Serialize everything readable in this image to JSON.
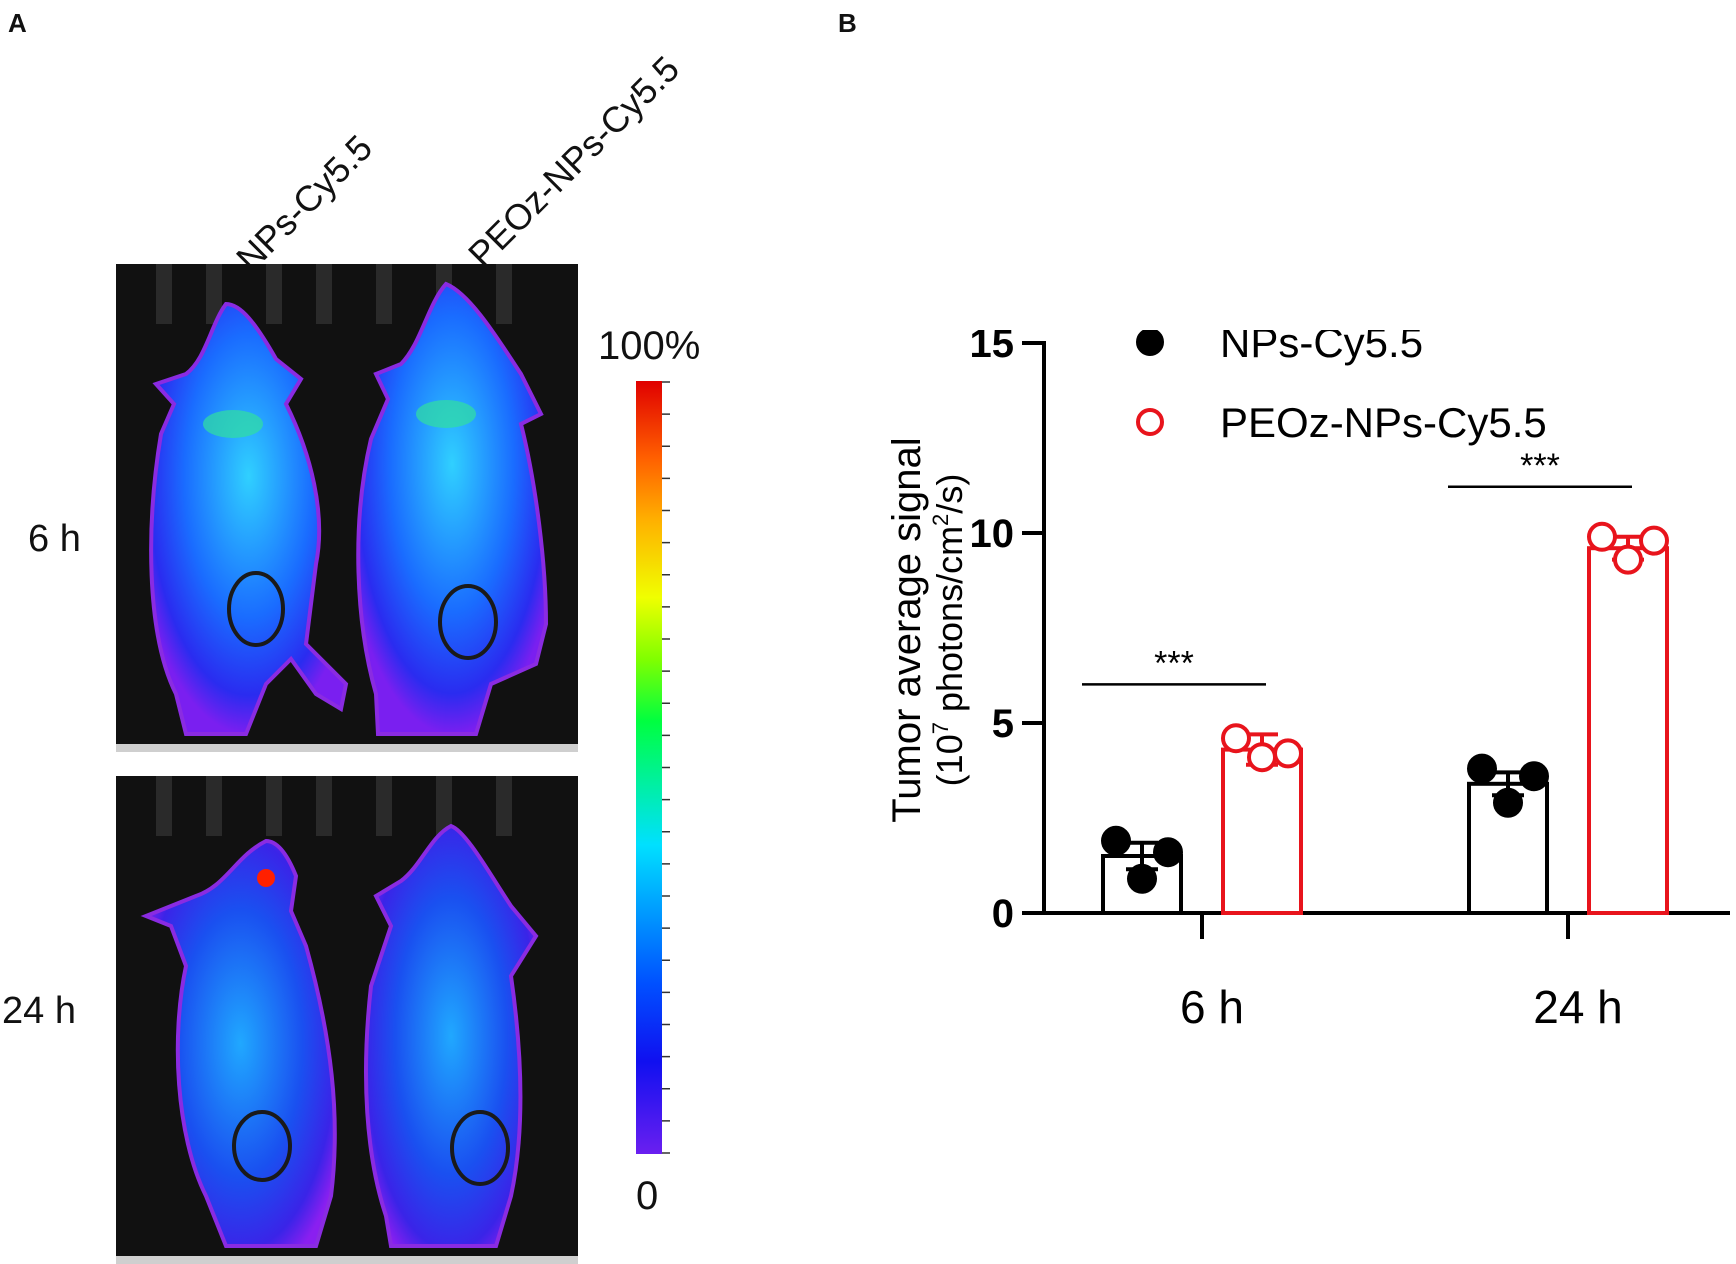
{
  "panel_a": {
    "label": "A",
    "column_labels": [
      "NPs-Cy5.5",
      "PEOz-NPs-Cy5.5"
    ],
    "row_labels": [
      "6 h",
      "24 h"
    ],
    "colorbar": {
      "max_label": "100%",
      "min_label": "0"
    }
  },
  "panel_b": {
    "label": "B"
  },
  "chart_data": {
    "type": "bar",
    "categories": [
      "6 h",
      "24 h"
    ],
    "ylabel_line1": "Tumor average signal",
    "ylabel_line2_prefix": "(10",
    "ylabel_line2_exp": "7",
    "ylabel_line2_mid": " photons/cm",
    "ylabel_line2_exp2": "2",
    "ylabel_line2_suffix": "/s)",
    "ylim": [
      0,
      15
    ],
    "yticks": [
      0,
      5,
      10,
      15
    ],
    "legend_position": "top",
    "series": [
      {
        "name": "NPs-Cy5.5",
        "color": "#000000",
        "marker": "filled-circle",
        "values": [
          1.5,
          3.4
        ],
        "errors": [
          0.35,
          0.3
        ],
        "points": [
          [
            1.9,
            0.9,
            1.6
          ],
          [
            3.8,
            2.9,
            3.6
          ]
        ]
      },
      {
        "name": "PEOz-NPs-Cy5.5",
        "color": "#e8141c",
        "marker": "open-circle",
        "values": [
          4.3,
          9.6
        ],
        "errors": [
          0.4,
          0.3
        ],
        "points": [
          [
            4.6,
            4.1,
            4.2
          ],
          [
            9.9,
            9.3,
            9.8
          ]
        ]
      }
    ],
    "significance": [
      {
        "category": "6 h",
        "label": "***"
      },
      {
        "category": "24 h",
        "label": "***"
      }
    ]
  }
}
